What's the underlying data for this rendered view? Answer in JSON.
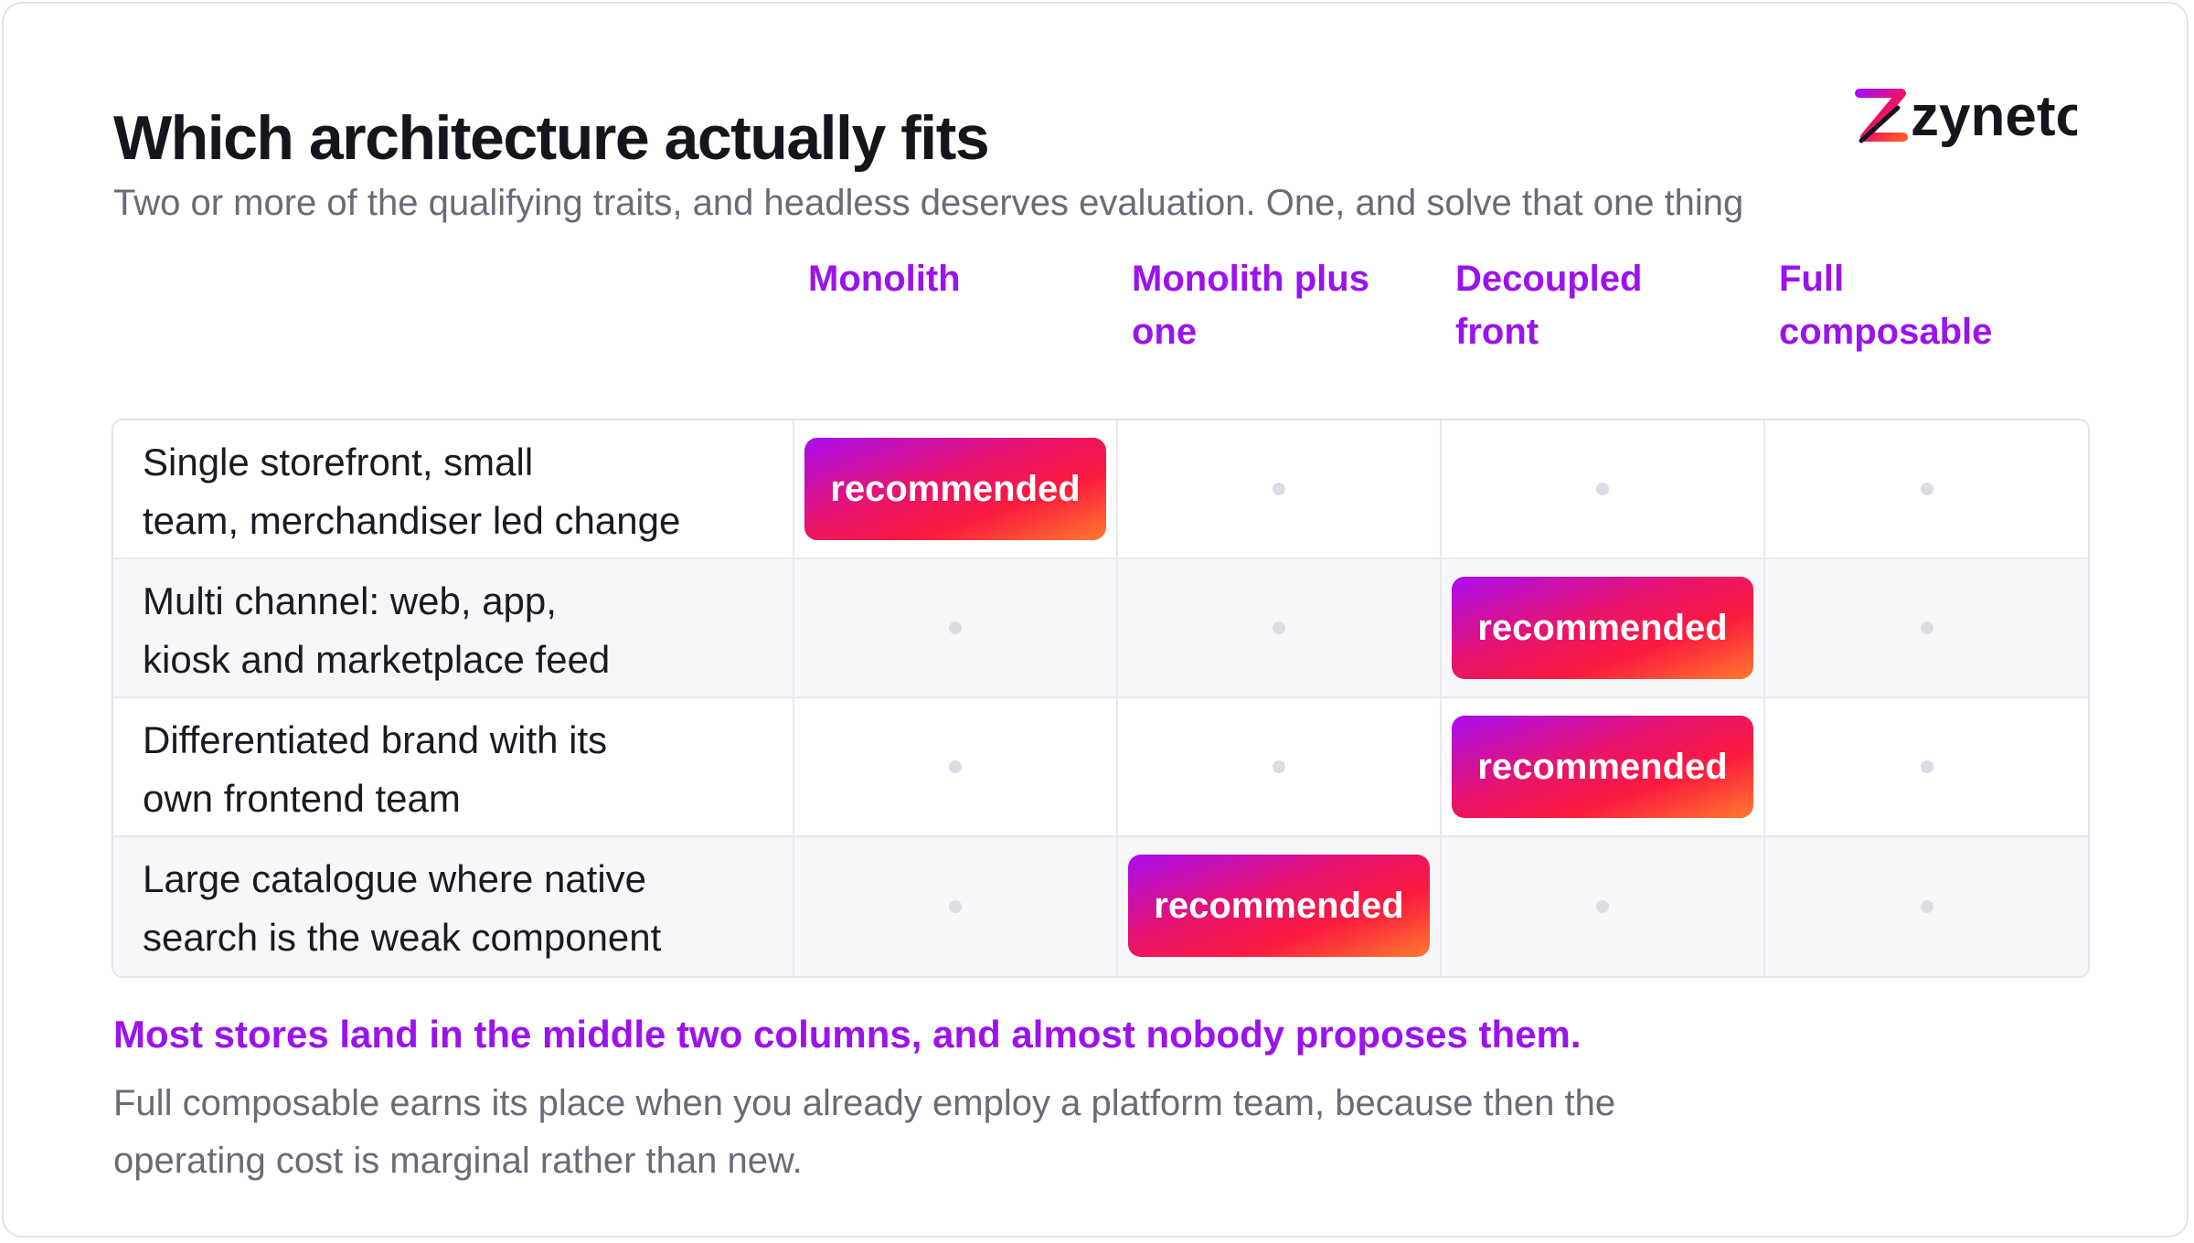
{
  "header": {
    "title": "Which architecture actually fits",
    "subtitle": "Two or more of the qualifying traits, and headless deserves evaluation. One, and solve that one thing"
  },
  "logo": {
    "text": "zyneto"
  },
  "columns": [
    {
      "line1": "Monolith",
      "line2": ""
    },
    {
      "line1": "Monolith plus",
      "line2": "one"
    },
    {
      "line1": "Decoupled",
      "line2": "front"
    },
    {
      "line1": "Full",
      "line2": "composable"
    }
  ],
  "rows": [
    {
      "line1": "Single storefront, small",
      "line2": "team, merchandiser led change",
      "recommended_column": 0
    },
    {
      "line1": "Multi channel: web, app,",
      "line2": "kiosk and marketplace feed",
      "recommended_column": 2
    },
    {
      "line1": "Differentiated brand with its",
      "line2": "own frontend team",
      "recommended_column": 2
    },
    {
      "line1": "Large catalogue where native",
      "line2": "search is the weak component",
      "recommended_column": 1
    }
  ],
  "badge_label": "recommended",
  "footer": {
    "takeaway": "Most stores land in the middle two columns, and almost nobody proposes them.",
    "body_line1": "Full composable earns its place when you already employ a platform team, because then the",
    "body_line2": "operating cost is marginal rather than new."
  },
  "colors": {
    "accent": "#9b12ef",
    "badge_gradient": [
      "#a90df0",
      "#e8136c",
      "#fb1a3e",
      "#ff7a2e"
    ],
    "empty_dot": "#dcdce6"
  }
}
